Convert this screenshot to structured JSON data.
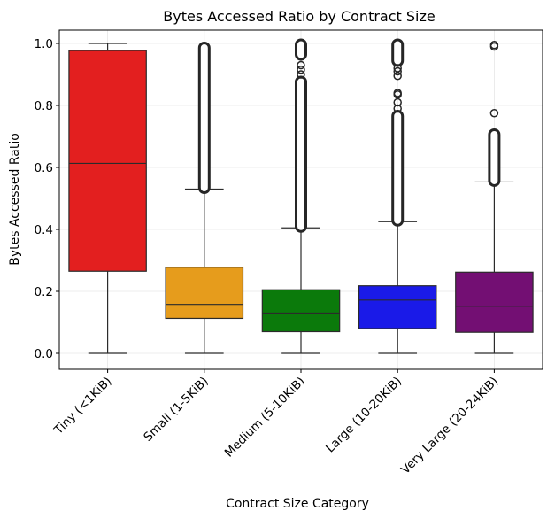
{
  "chart_data": {
    "type": "box",
    "title": "Bytes Accessed Ratio by Contract Size",
    "xlabel": "Contract Size Category",
    "ylabel": "Bytes Accessed Ratio",
    "ylim": [
      -0.05,
      1.05
    ],
    "yticks": [
      "0.0",
      "0.2",
      "0.4",
      "0.6",
      "0.8",
      "1.0"
    ],
    "grid": true,
    "categories": [
      "Tiny (<1KiB)",
      "Small (1-5KiB)",
      "Medium (5-10KiB)",
      "Large (10-20KiB)",
      "Very Large (20-24KiB)"
    ],
    "boxes": [
      {
        "color": "#e31f1f",
        "whisker_low": 0.0,
        "q1": 0.265,
        "median": 0.613,
        "q3": 0.977,
        "whisker_high": 1.0,
        "outlier_bands": [],
        "outliers": []
      },
      {
        "color": "#e69c1c",
        "whisker_low": 0.0,
        "q1": 0.113,
        "median": 0.158,
        "q3": 0.278,
        "whisker_high": 0.53,
        "outlier_bands": [
          [
            0.53,
            0.99
          ]
        ],
        "outliers": []
      },
      {
        "color": "#0b7a0b",
        "whisker_low": 0.0,
        "q1": 0.07,
        "median": 0.13,
        "q3": 0.205,
        "whisker_high": 0.405,
        "outlier_bands": [
          [
            0.405,
            0.88
          ],
          [
            0.96,
            1.0
          ]
        ],
        "outliers": [
          0.9,
          0.915,
          0.93
        ]
      },
      {
        "color": "#1a1ae8",
        "whisker_low": 0.0,
        "q1": 0.08,
        "median": 0.172,
        "q3": 0.218,
        "whisker_high": 0.425,
        "outlier_bands": [
          [
            0.425,
            0.77
          ],
          [
            0.94,
            1.0
          ]
        ],
        "outliers": [
          0.79,
          0.81,
          0.835,
          0.84,
          0.895,
          0.91,
          0.92
        ]
      },
      {
        "color": "#730f73",
        "whisker_low": 0.0,
        "q1": 0.068,
        "median": 0.152,
        "q3": 0.262,
        "whisker_high": 0.553,
        "outlier_bands": [
          [
            0.553,
            0.71
          ]
        ],
        "outliers": [
          0.775,
          0.99,
          0.995
        ]
      }
    ]
  }
}
